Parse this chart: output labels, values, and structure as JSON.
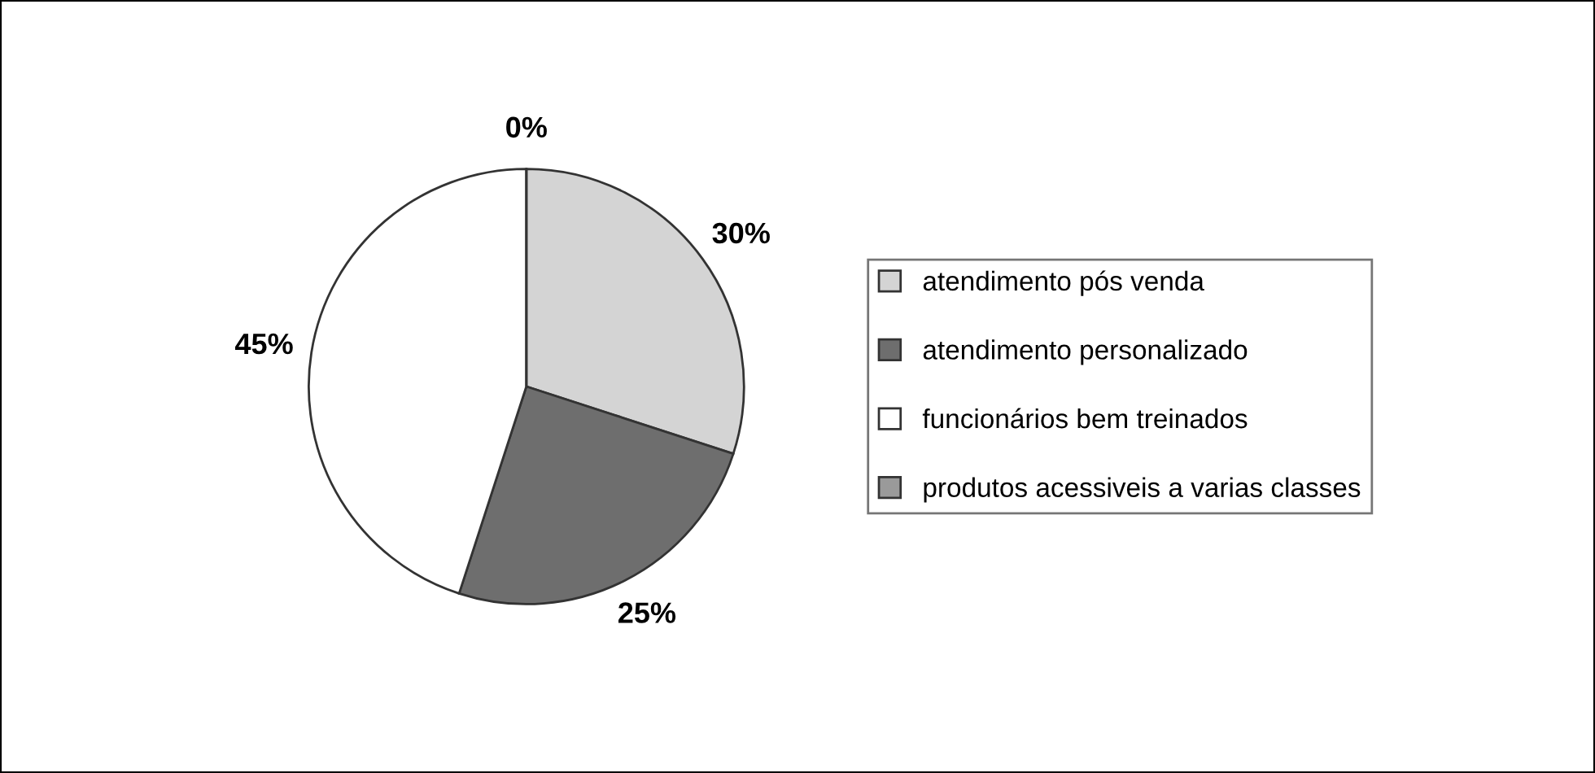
{
  "chart_data": {
    "type": "pie",
    "categories": [
      "atendimento pós venda",
      "atendimento personalizado",
      "funcionários bem treinados",
      "produtos acessiveis a varias classes"
    ],
    "values": [
      30,
      25,
      45,
      0
    ],
    "value_labels": [
      "30%",
      "25%",
      "45%",
      "0%"
    ],
    "colors": [
      "#d4d4d4",
      "#6e6e6e",
      "#ffffff",
      "#9a9a9a"
    ],
    "legend": "right"
  }
}
